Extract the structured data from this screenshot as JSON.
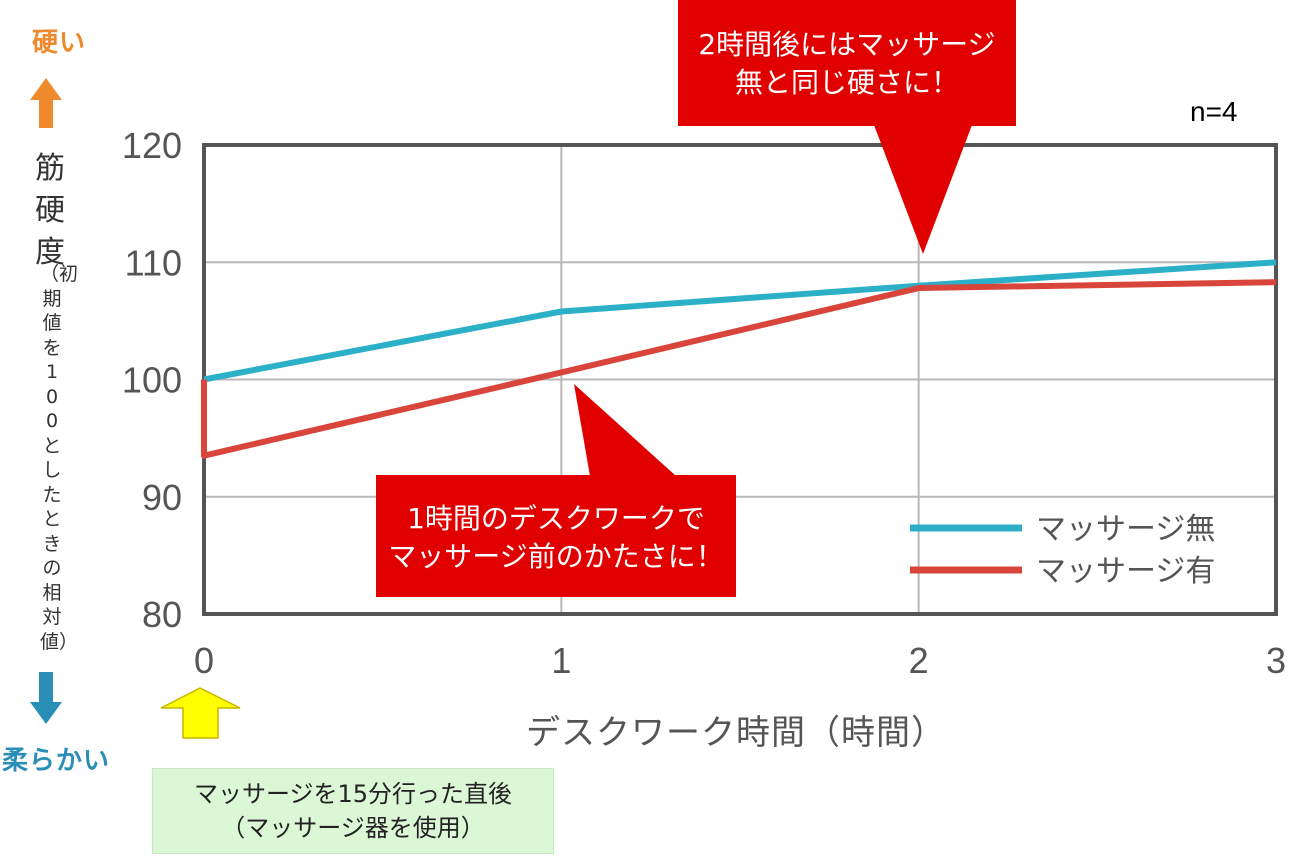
{
  "annotations": {
    "hard": "硬い",
    "soft": "柔らかい",
    "sample_size": "n=4",
    "callout_top_line1": "2時間後にはマッサージ",
    "callout_top_line2": "無と同じ硬さに！",
    "callout_bottom_line1": "1時間のデスクワークで",
    "callout_bottom_line2": "マッサージ前のかたさに！",
    "note_line1": "マッサージを15分行った直後",
    "note_line2": "（マッサージ器を使用）"
  },
  "colors": {
    "hard": "#ee8a2c",
    "soft": "#2a8fb6",
    "callout": "#e00000",
    "note_arrow": "#ffff00",
    "series_no_massage": "#2cb0c7",
    "series_massage": "#d9453b"
  },
  "chart_data": {
    "type": "line",
    "ylabel_main": "筋硬度",
    "ylabel_sub": "（初期値を100としたときの相対値）",
    "xlabel": "デスクワーク時間（時間）",
    "xlim": [
      0,
      3
    ],
    "ylim": [
      80,
      120
    ],
    "x_ticks": [
      "0",
      "1",
      "2",
      "3"
    ],
    "y_ticks": [
      "80",
      "90",
      "100",
      "110",
      "120"
    ],
    "grid": true,
    "legend_position": "bottom-right",
    "series": [
      {
        "name": "マッサージ無",
        "color": "#2cb0c7",
        "points": [
          [
            0,
            100
          ],
          [
            1,
            105.8
          ],
          [
            2,
            108
          ],
          [
            3,
            110
          ]
        ]
      },
      {
        "name": "マッサージ有",
        "color": "#d9453b",
        "points": [
          [
            0,
            100
          ],
          [
            0,
            93.5
          ],
          [
            1,
            100.6
          ],
          [
            2,
            107.8
          ],
          [
            3,
            108.3
          ]
        ]
      }
    ]
  }
}
